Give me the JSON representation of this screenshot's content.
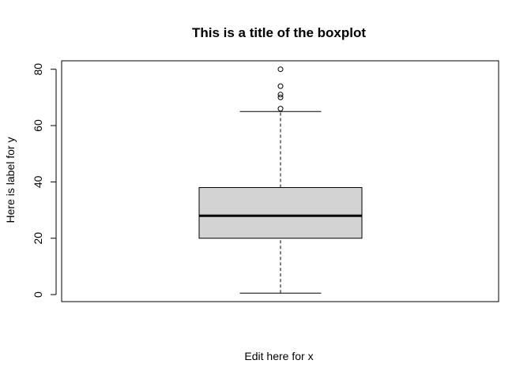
{
  "chart_data": {
    "type": "boxplot",
    "title": "This is a title of the boxplot",
    "xlabel": "Edit here for x",
    "ylabel": "Here is label for y",
    "ylim": [
      -2.5,
      83
    ],
    "y_ticks": [
      0,
      20,
      40,
      60,
      80
    ],
    "grid": false,
    "box": {
      "whisker_low": 0.5,
      "q1": 20,
      "median": 28,
      "q3": 38,
      "whisker_high": 65,
      "outliers": [
        66,
        70,
        71,
        74,
        80
      ]
    },
    "colors": {
      "box_fill": "#d3d3d3",
      "stroke": "#000000",
      "background": "#ffffff"
    }
  }
}
